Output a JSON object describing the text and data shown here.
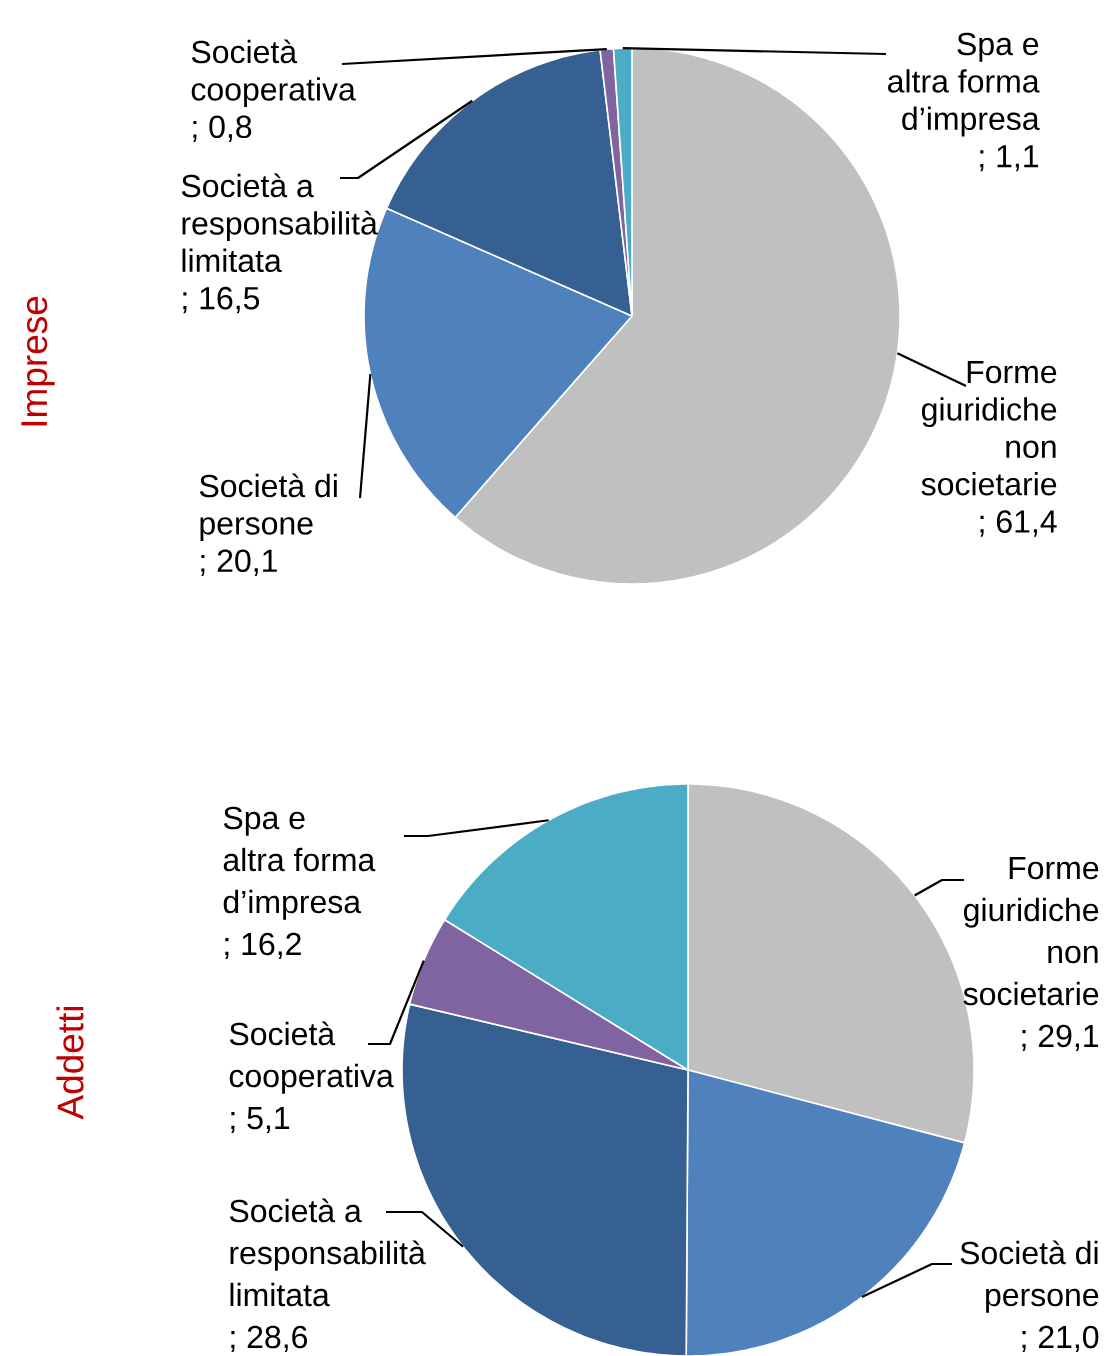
{
  "chart_data": [
    {
      "type": "pie",
      "title": "Imprese",
      "categories": [
        "Forme giuridiche non societarie",
        "Società di persone",
        "Società a responsabilità limitata",
        "Società cooperativa",
        "Spa e altra forma d’impresa"
      ],
      "values": [
        61.4,
        20.1,
        16.5,
        0.8,
        1.1
      ],
      "value_labels": [
        "; 61,4",
        "; 20,1",
        "; 16,5",
        "; 0,8",
        "; 1,1"
      ],
      "colors": [
        "#c0c0c0",
        "#4f81bd",
        "#376092",
        "#8064a2",
        "#4bacc6"
      ]
    },
    {
      "type": "pie",
      "title": "Addetti",
      "categories": [
        "Forme giuridiche non societarie",
        "Società di persone",
        "Società a responsabilità limitata",
        "Società cooperativa",
        "Spa e altra forma d’impresa"
      ],
      "values": [
        29.1,
        21.0,
        28.6,
        5.1,
        16.2
      ],
      "value_labels": [
        "; 29,1",
        "; 21,0",
        "; 28,6",
        "; 5,1",
        "; 16,2"
      ],
      "colors": [
        "#c0c0c0",
        "#4f81bd",
        "#376092",
        "#8064a2",
        "#4bacc6"
      ]
    }
  ]
}
